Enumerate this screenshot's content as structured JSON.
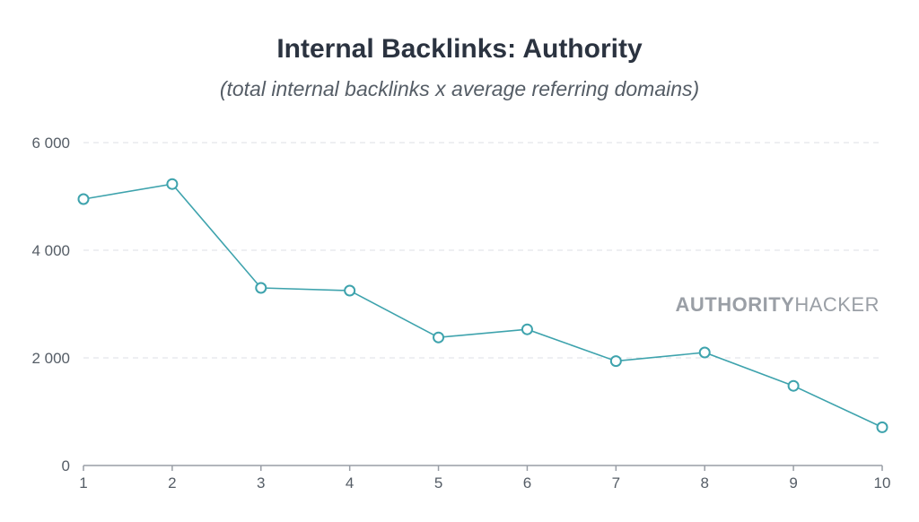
{
  "colors": {
    "series": "#3ea3ad",
    "title": "#2b3340"
  },
  "watermark": {
    "bold": "AUTHORITY",
    "normal": "HACKER"
  },
  "chart_data": {
    "type": "line",
    "title": "Internal Backlinks: Authority",
    "subtitle": "(total internal backlinks x average referring domains)",
    "xlabel": "",
    "ylabel": "",
    "x": [
      1,
      2,
      3,
      4,
      5,
      6,
      7,
      8,
      9,
      10
    ],
    "y_ticks": [
      "0",
      "2 000",
      "4 000",
      "6 000"
    ],
    "y_tick_values": [
      0,
      2000,
      4000,
      6000
    ],
    "ylim": [
      0,
      6000
    ],
    "grid": true,
    "series": [
      {
        "values": [
          4950,
          5230,
          3300,
          3250,
          2380,
          2530,
          1940,
          2100,
          1480,
          710
        ]
      }
    ]
  }
}
